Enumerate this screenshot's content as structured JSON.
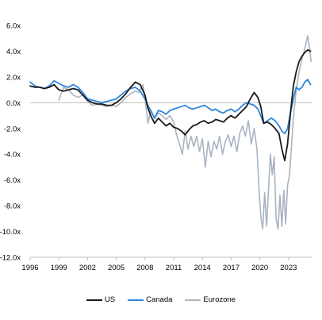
{
  "chart_data": {
    "type": "line",
    "title": "",
    "xlabel": "",
    "ylabel": "",
    "ylim": [
      -12,
      6
    ],
    "xlim": [
      1996,
      2025.5
    ],
    "y_ticks": [
      6,
      4,
      2,
      0,
      -2,
      -4,
      -6,
      -8,
      -10,
      -12
    ],
    "y_tick_labels": [
      "6.0x",
      "4.0x",
      "2.0x",
      "0.0x",
      "-2.0x",
      "-4.0x",
      "-6.0x",
      "-8.0x",
      "-10.0x",
      "-12.0x"
    ],
    "x_ticks": [
      1996,
      1999,
      2002,
      2005,
      2008,
      2011,
      2014,
      2017,
      2020,
      2023
    ],
    "x_tick_labels": [
      "1996",
      "1999",
      "2002",
      "2005",
      "2008",
      "2011",
      "2014",
      "2017",
      "2020",
      "2023"
    ],
    "grid": false,
    "zero_line": true,
    "legend_position": "bottom",
    "series": [
      {
        "name": "US",
        "color": "#1a1a1a",
        "points": [
          [
            1996.0,
            1.3
          ],
          [
            1996.5,
            1.2
          ],
          [
            1997.0,
            1.2
          ],
          [
            1997.5,
            1.1
          ],
          [
            1998.0,
            1.2
          ],
          [
            1998.5,
            1.4
          ],
          [
            1999.0,
            1.0
          ],
          [
            1999.5,
            0.9
          ],
          [
            2000.0,
            1.0
          ],
          [
            2000.5,
            1.1
          ],
          [
            2001.0,
            1.0
          ],
          [
            2001.5,
            0.6
          ],
          [
            2002.0,
            0.2
          ],
          [
            2002.5,
            0.0
          ],
          [
            2003.0,
            -0.1
          ],
          [
            2003.5,
            -0.1
          ],
          [
            2004.0,
            -0.2
          ],
          [
            2004.5,
            -0.2
          ],
          [
            2005.0,
            0.0
          ],
          [
            2005.5,
            0.3
          ],
          [
            2006.0,
            0.7
          ],
          [
            2006.5,
            1.2
          ],
          [
            2007.0,
            1.6
          ],
          [
            2007.5,
            1.4
          ],
          [
            2008.0,
            0.6
          ],
          [
            2008.3,
            -0.4
          ],
          [
            2008.6,
            -1.0
          ],
          [
            2009.0,
            -1.6
          ],
          [
            2009.4,
            -1.2
          ],
          [
            2009.8,
            -1.5
          ],
          [
            2010.2,
            -1.8
          ],
          [
            2010.6,
            -1.6
          ],
          [
            2011.0,
            -1.9
          ],
          [
            2011.4,
            -2.0
          ],
          [
            2011.8,
            -2.2
          ],
          [
            2012.2,
            -2.5
          ],
          [
            2012.6,
            -2.1
          ],
          [
            2013.0,
            -1.8
          ],
          [
            2013.4,
            -1.7
          ],
          [
            2013.8,
            -1.5
          ],
          [
            2014.2,
            -1.4
          ],
          [
            2014.6,
            -1.6
          ],
          [
            2015.0,
            -1.5
          ],
          [
            2015.4,
            -1.3
          ],
          [
            2015.8,
            -1.4
          ],
          [
            2016.2,
            -1.5
          ],
          [
            2016.6,
            -1.2
          ],
          [
            2017.0,
            -1.0
          ],
          [
            2017.4,
            -1.2
          ],
          [
            2017.8,
            -0.9
          ],
          [
            2018.2,
            -0.6
          ],
          [
            2018.6,
            -0.3
          ],
          [
            2019.0,
            0.3
          ],
          [
            2019.4,
            0.8
          ],
          [
            2019.8,
            0.4
          ],
          [
            2020.1,
            -0.3
          ],
          [
            2020.4,
            -1.6
          ],
          [
            2020.8,
            -1.5
          ],
          [
            2021.2,
            -1.7
          ],
          [
            2021.6,
            -2.0
          ],
          [
            2022.0,
            -2.4
          ],
          [
            2022.3,
            -3.6
          ],
          [
            2022.6,
            -4.5
          ],
          [
            2022.9,
            -3.2
          ],
          [
            2023.2,
            -0.8
          ],
          [
            2023.5,
            1.3
          ],
          [
            2023.8,
            2.4
          ],
          [
            2024.1,
            3.2
          ],
          [
            2024.4,
            3.6
          ],
          [
            2024.7,
            3.9
          ],
          [
            2025.0,
            4.1
          ],
          [
            2025.3,
            4.0
          ]
        ]
      },
      {
        "name": "Canada",
        "color": "#2e86de",
        "points": [
          [
            1996.0,
            1.6
          ],
          [
            1996.5,
            1.3
          ],
          [
            1997.0,
            1.2
          ],
          [
            1997.5,
            1.1
          ],
          [
            1998.0,
            1.3
          ],
          [
            1998.5,
            1.7
          ],
          [
            1999.0,
            1.5
          ],
          [
            1999.5,
            1.3
          ],
          [
            2000.0,
            1.2
          ],
          [
            2000.5,
            1.4
          ],
          [
            2001.0,
            1.2
          ],
          [
            2001.5,
            0.8
          ],
          [
            2002.0,
            0.3
          ],
          [
            2002.5,
            0.2
          ],
          [
            2003.0,
            0.1
          ],
          [
            2003.5,
            0.0
          ],
          [
            2004.0,
            0.1
          ],
          [
            2004.5,
            0.2
          ],
          [
            2005.0,
            0.3
          ],
          [
            2005.5,
            0.6
          ],
          [
            2006.0,
            0.9
          ],
          [
            2006.5,
            1.1
          ],
          [
            2007.0,
            1.2
          ],
          [
            2007.5,
            0.9
          ],
          [
            2008.0,
            0.3
          ],
          [
            2008.3,
            -0.2
          ],
          [
            2008.6,
            -0.6
          ],
          [
            2009.0,
            -1.2
          ],
          [
            2009.4,
            -0.6
          ],
          [
            2009.8,
            -0.7
          ],
          [
            2010.2,
            -0.9
          ],
          [
            2010.6,
            -0.6
          ],
          [
            2011.0,
            -0.5
          ],
          [
            2011.4,
            -0.4
          ],
          [
            2011.8,
            -0.3
          ],
          [
            2012.2,
            -0.2
          ],
          [
            2012.6,
            -0.4
          ],
          [
            2013.0,
            -0.5
          ],
          [
            2013.4,
            -0.4
          ],
          [
            2013.8,
            -0.3
          ],
          [
            2014.2,
            -0.2
          ],
          [
            2014.6,
            -0.4
          ],
          [
            2015.0,
            -0.6
          ],
          [
            2015.4,
            -0.5
          ],
          [
            2015.8,
            -0.7
          ],
          [
            2016.2,
            -0.8
          ],
          [
            2016.6,
            -0.6
          ],
          [
            2017.0,
            -0.5
          ],
          [
            2017.4,
            -0.7
          ],
          [
            2017.8,
            -0.5
          ],
          [
            2018.2,
            -0.2
          ],
          [
            2018.6,
            0.0
          ],
          [
            2019.0,
            -0.1
          ],
          [
            2019.4,
            -0.2
          ],
          [
            2019.8,
            -0.5
          ],
          [
            2020.1,
            -1.0
          ],
          [
            2020.4,
            -1.6
          ],
          [
            2020.8,
            -1.4
          ],
          [
            2021.2,
            -1.2
          ],
          [
            2021.6,
            -1.4
          ],
          [
            2022.0,
            -1.8
          ],
          [
            2022.3,
            -2.2
          ],
          [
            2022.6,
            -2.4
          ],
          [
            2022.9,
            -2.0
          ],
          [
            2023.2,
            -0.8
          ],
          [
            2023.5,
            0.3
          ],
          [
            2023.8,
            1.2
          ],
          [
            2024.1,
            1.0
          ],
          [
            2024.4,
            1.2
          ],
          [
            2024.7,
            1.6
          ],
          [
            2025.0,
            1.8
          ],
          [
            2025.3,
            1.4
          ]
        ]
      },
      {
        "name": "Eurozone",
        "color": "#a9b4c2",
        "points": [
          [
            1999.0,
            0.2
          ],
          [
            1999.2,
            0.6
          ],
          [
            1999.5,
            1.2
          ],
          [
            2000.0,
            1.0
          ],
          [
            2000.5,
            0.6
          ],
          [
            2001.0,
            0.4
          ],
          [
            2001.5,
            0.6
          ],
          [
            2002.0,
            0.1
          ],
          [
            2002.5,
            -0.2
          ],
          [
            2003.0,
            -0.1
          ],
          [
            2003.5,
            -0.2
          ],
          [
            2004.0,
            -0.3
          ],
          [
            2004.5,
            -0.2
          ],
          [
            2005.0,
            -0.3
          ],
          [
            2005.5,
            0.0
          ],
          [
            2006.0,
            0.4
          ],
          [
            2006.5,
            0.7
          ],
          [
            2007.0,
            0.9
          ],
          [
            2007.4,
            0.8
          ],
          [
            2007.8,
            1.4
          ],
          [
            2008.0,
            0.4
          ],
          [
            2008.3,
            -1.6
          ],
          [
            2008.6,
            -0.6
          ],
          [
            2009.0,
            -1.2
          ],
          [
            2009.4,
            -0.8
          ],
          [
            2009.8,
            -1.0
          ],
          [
            2010.2,
            -1.3
          ],
          [
            2010.6,
            -1.0
          ],
          [
            2011.0,
            -1.5
          ],
          [
            2011.3,
            -2.5
          ],
          [
            2011.6,
            -3.2
          ],
          [
            2011.9,
            -4.0
          ],
          [
            2012.2,
            -2.2
          ],
          [
            2012.5,
            -3.6
          ],
          [
            2012.8,
            -2.6
          ],
          [
            2013.1,
            -3.4
          ],
          [
            2013.4,
            -2.6
          ],
          [
            2013.7,
            -3.8
          ],
          [
            2014.0,
            -2.8
          ],
          [
            2014.3,
            -5.0
          ],
          [
            2014.6,
            -3.0
          ],
          [
            2014.9,
            -4.2
          ],
          [
            2015.2,
            -3.0
          ],
          [
            2015.5,
            -3.6
          ],
          [
            2015.8,
            -2.6
          ],
          [
            2016.1,
            -4.0
          ],
          [
            2016.4,
            -3.0
          ],
          [
            2016.7,
            -2.5
          ],
          [
            2017.0,
            -3.4
          ],
          [
            2017.3,
            -2.6
          ],
          [
            2017.6,
            -3.8
          ],
          [
            2017.9,
            -2.4
          ],
          [
            2018.2,
            -1.8
          ],
          [
            2018.5,
            -2.6
          ],
          [
            2018.8,
            -1.4
          ],
          [
            2019.1,
            -3.2
          ],
          [
            2019.4,
            -2.0
          ],
          [
            2019.7,
            -3.6
          ],
          [
            2019.9,
            -6.5
          ],
          [
            2020.1,
            -8.8
          ],
          [
            2020.3,
            -9.8
          ],
          [
            2020.5,
            -7.0
          ],
          [
            2020.7,
            -9.6
          ],
          [
            2020.9,
            -6.8
          ],
          [
            2021.1,
            -4.0
          ],
          [
            2021.3,
            -5.6
          ],
          [
            2021.5,
            -4.2
          ],
          [
            2021.7,
            -9.0
          ],
          [
            2021.9,
            -9.8
          ],
          [
            2022.1,
            -7.2
          ],
          [
            2022.3,
            -9.6
          ],
          [
            2022.5,
            -6.8
          ],
          [
            2022.7,
            -9.4
          ],
          [
            2022.9,
            -6.4
          ],
          [
            2023.1,
            -5.6
          ],
          [
            2023.3,
            -3.4
          ],
          [
            2023.5,
            -1.2
          ],
          [
            2023.8,
            1.0
          ],
          [
            2024.1,
            2.4
          ],
          [
            2024.4,
            3.4
          ],
          [
            2024.7,
            4.2
          ],
          [
            2025.0,
            5.2
          ],
          [
            2025.2,
            4.2
          ],
          [
            2025.35,
            3.2
          ]
        ]
      }
    ]
  }
}
